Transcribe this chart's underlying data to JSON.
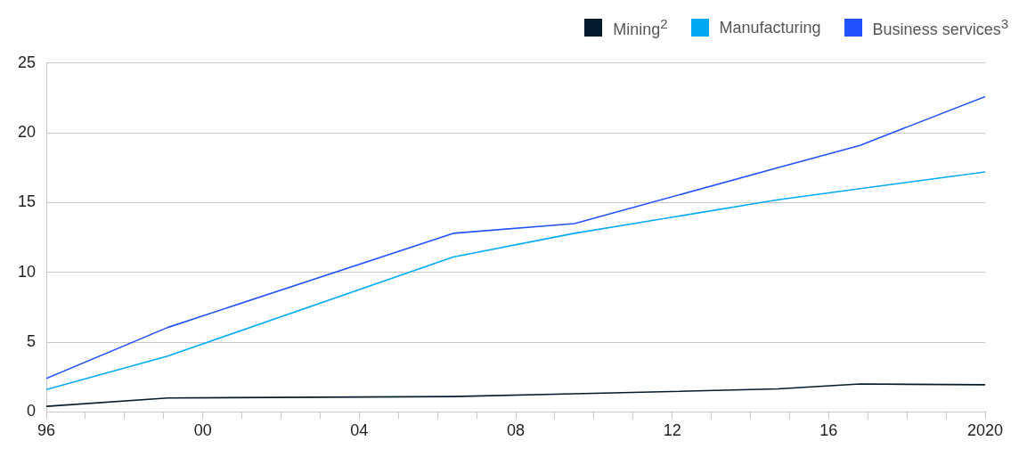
{
  "chart_data": {
    "type": "line",
    "legend": "top right",
    "grid": "y",
    "xlim": [
      1996,
      2020
    ],
    "ylim": [
      0,
      25
    ],
    "yticks": [
      0,
      5,
      10,
      15,
      20,
      25
    ],
    "xticks": [
      {
        "value": 1996,
        "label": "96"
      },
      {
        "value": 1997,
        "label": null
      },
      {
        "value": 1998,
        "label": null
      },
      {
        "value": 1999,
        "label": null
      },
      {
        "value": 2000,
        "label": "00"
      },
      {
        "value": 2001,
        "label": null
      },
      {
        "value": 2002,
        "label": null
      },
      {
        "value": 2003,
        "label": null
      },
      {
        "value": 2004,
        "label": "04"
      },
      {
        "value": 2005,
        "label": null
      },
      {
        "value": 2006,
        "label": null
      },
      {
        "value": 2007,
        "label": null
      },
      {
        "value": 2008,
        "label": "08"
      },
      {
        "value": 2009,
        "label": null
      },
      {
        "value": 2010,
        "label": null
      },
      {
        "value": 2011,
        "label": null
      },
      {
        "value": 2012,
        "label": "12"
      },
      {
        "value": 2013,
        "label": null
      },
      {
        "value": 2014,
        "label": null
      },
      {
        "value": 2015,
        "label": null
      },
      {
        "value": 2016,
        "label": "16"
      },
      {
        "value": 2017,
        "label": null
      },
      {
        "value": 2018,
        "label": null
      },
      {
        "value": 2019,
        "label": null
      },
      {
        "value": 2020,
        "label": "2020"
      }
    ],
    "x": [
      1996,
      1999.1,
      2006.4,
      2009.5,
      2014.7,
      2016.8,
      2020
    ],
    "series": [
      {
        "name": "Mining$^{2}$",
        "color": "#051c2c",
        "values": [
          0.4,
          1.0,
          1.1,
          1.3,
          1.65,
          2.0,
          1.95
        ]
      },
      {
        "name": "Manufacturing",
        "color": "#00a9f4",
        "values": [
          1.6,
          4.0,
          11.1,
          12.8,
          15.2,
          16.0,
          17.2
        ]
      },
      {
        "name": "Business services$^{3}$",
        "color": "#2251ff",
        "values": [
          2.4,
          6.05,
          12.8,
          13.5,
          17.5,
          19.1,
          22.6
        ]
      }
    ]
  }
}
